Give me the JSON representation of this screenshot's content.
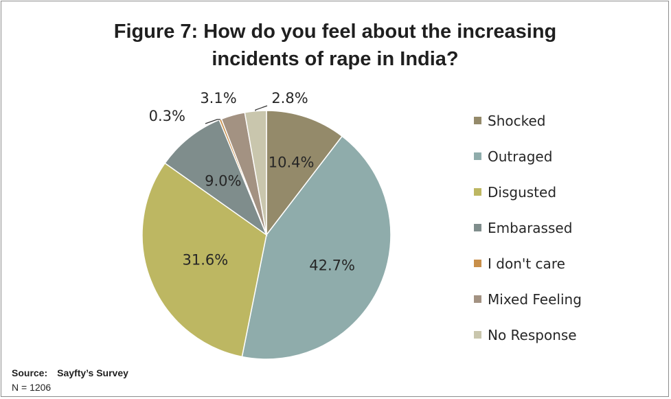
{
  "chart_data": {
    "type": "pie",
    "title": "Figure 7: How do you feel about the increasing incidents of rape in India?",
    "title_lines": [
      "Figure 7: How do you feel about the increasing",
      "incidents of rape in India?"
    ],
    "categories": [
      "Shocked",
      "Outraged",
      "Disgusted",
      "Embarassed",
      "I don't care",
      "Mixed Feeling",
      "No Response"
    ],
    "values": [
      10.4,
      42.7,
      31.6,
      9.0,
      0.3,
      3.1,
      2.8
    ],
    "value_labels": [
      "10.4%",
      "42.7%",
      "31.6%",
      "9.0%",
      "0.3%",
      "3.1%",
      "2.8%"
    ],
    "colors": [
      "#948a6a",
      "#8facab",
      "#bdb762",
      "#7f8d8c",
      "#c88f4a",
      "#a39282",
      "#c9c6ad"
    ],
    "legend_position": "right"
  },
  "footer": {
    "source_label": "Source:",
    "source_value": "Sayfty’s Survey",
    "n_text": "N = 1206"
  }
}
